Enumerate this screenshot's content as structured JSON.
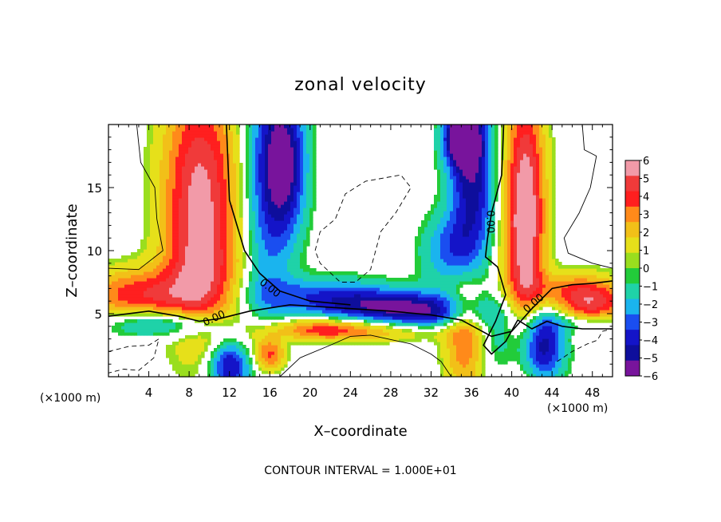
{
  "chart_data": {
    "type": "heatmap",
    "title": "zonal velocity",
    "xlabel": "X–coordinate",
    "ylabel": "Z–coordinate",
    "x_unit": "(×1000 m)",
    "z_unit": "(×1000 m)",
    "footer": "CONTOUR INTERVAL = 1.000E+01",
    "xlim": [
      0,
      50
    ],
    "ylim": [
      0,
      20
    ],
    "xticks": [
      4,
      8,
      12,
      16,
      20,
      24,
      28,
      32,
      36,
      40,
      44,
      48
    ],
    "yticks": [
      5,
      10,
      15
    ],
    "colorbar": {
      "ticks": [
        6,
        5,
        4,
        3,
        2,
        1,
        0,
        -1,
        -2,
        -3,
        -4,
        -5,
        -6
      ],
      "tick_labels": [
        "6",
        "5",
        "4",
        "3",
        "2",
        "1",
        "0",
        "−1",
        "−2",
        "−3",
        "−4",
        "−5",
        "−6"
      ],
      "range": [
        -6,
        6
      ],
      "colors": [
        "#f29aa8",
        "#f03a3a",
        "#ff1f1f",
        "#ff8a1a",
        "#f2c018",
        "#e6e01a",
        "#9ade1e",
        "#22cc3a",
        "#1fd2a8",
        "#1ab4ee",
        "#1a4ef0",
        "#1414c8",
        "#0e0e9c",
        "#78149c"
      ]
    },
    "contour_labels": [
      "0.00",
      "0.00",
      "0.00",
      "0.00"
    ],
    "blobs": [
      {
        "x": 9,
        "z": 14,
        "sx": 2.6,
        "sz": 7,
        "v": 5.5
      },
      {
        "x": 9.5,
        "z": 8,
        "sx": 2.5,
        "sz": 2.5,
        "v": 1.5
      },
      {
        "x": 13,
        "z": 13,
        "sx": 2.2,
        "sz": 7,
        "v": 0.5
      },
      {
        "x": 15.5,
        "z": 15,
        "sx": 1.8,
        "sz": 8,
        "v": -3
      },
      {
        "x": 17.5,
        "z": 17,
        "sx": 1.5,
        "sz": 4,
        "v": -5
      },
      {
        "x": 21,
        "z": 6.6,
        "sx": 5,
        "sz": 1.0,
        "v": -2.5
      },
      {
        "x": 27,
        "z": 5.6,
        "sx": 5,
        "sz": 0.9,
        "v": -4
      },
      {
        "x": 32,
        "z": 5.0,
        "sx": 3.5,
        "sz": 1.0,
        "v": -3
      },
      {
        "x": 3,
        "z": 6.5,
        "sx": 4,
        "sz": 1.5,
        "v": 4
      },
      {
        "x": 3,
        "z": 4.3,
        "sx": 3,
        "sz": 0.8,
        "v": -2
      },
      {
        "x": 8,
        "z": 4.2,
        "sx": 3,
        "sz": 0.8,
        "v": -2.5
      },
      {
        "x": 13.5,
        "z": 3.2,
        "sx": 2.2,
        "sz": 1.4,
        "v": 1
      },
      {
        "x": 12,
        "z": 1.0,
        "sx": 1.4,
        "sz": 1.5,
        "v": -5
      },
      {
        "x": 16,
        "z": 1.8,
        "sx": 1.1,
        "sz": 1.0,
        "v": 4
      },
      {
        "x": 21,
        "z": 3.8,
        "sx": 3.5,
        "sz": 0.6,
        "v": 3.5
      },
      {
        "x": 28,
        "z": 3.6,
        "sx": 5,
        "sz": 0.6,
        "v": 2
      },
      {
        "x": 35.5,
        "z": 3.0,
        "sx": 1.5,
        "sz": 3,
        "v": 4
      },
      {
        "x": 36,
        "z": 16,
        "sx": 1.6,
        "sz": 5,
        "v": -4.5
      },
      {
        "x": 35,
        "z": 19,
        "sx": 1.2,
        "sz": 1.5,
        "v": -6
      },
      {
        "x": 38,
        "z": 12,
        "sx": 1.8,
        "sz": 6,
        "v": -1.5
      },
      {
        "x": 36.5,
        "z": 9,
        "sx": 2,
        "sz": 3,
        "v": 1
      },
      {
        "x": 40,
        "z": 12,
        "sx": 1.8,
        "sz": 7,
        "v": 2.5
      },
      {
        "x": 41.5,
        "z": 13,
        "sx": 1.3,
        "sz": 7,
        "v": 5
      },
      {
        "x": 39,
        "z": 3.5,
        "sx": 2.5,
        "sz": 2.5,
        "v": -2
      },
      {
        "x": 43,
        "z": 2.5,
        "sx": 1.5,
        "sz": 2,
        "v": -5
      },
      {
        "x": 45,
        "z": 7,
        "sx": 3,
        "sz": 1,
        "v": 2
      },
      {
        "x": 48,
        "z": 5.8,
        "sx": 2.5,
        "sz": 1.3,
        "v": 4.5
      },
      {
        "x": 47,
        "z": 4.3,
        "sx": 3,
        "sz": 0.6,
        "v": -2
      },
      {
        "x": 34,
        "z": 10,
        "sx": 2,
        "sz": 2,
        "v": -3
      }
    ]
  }
}
